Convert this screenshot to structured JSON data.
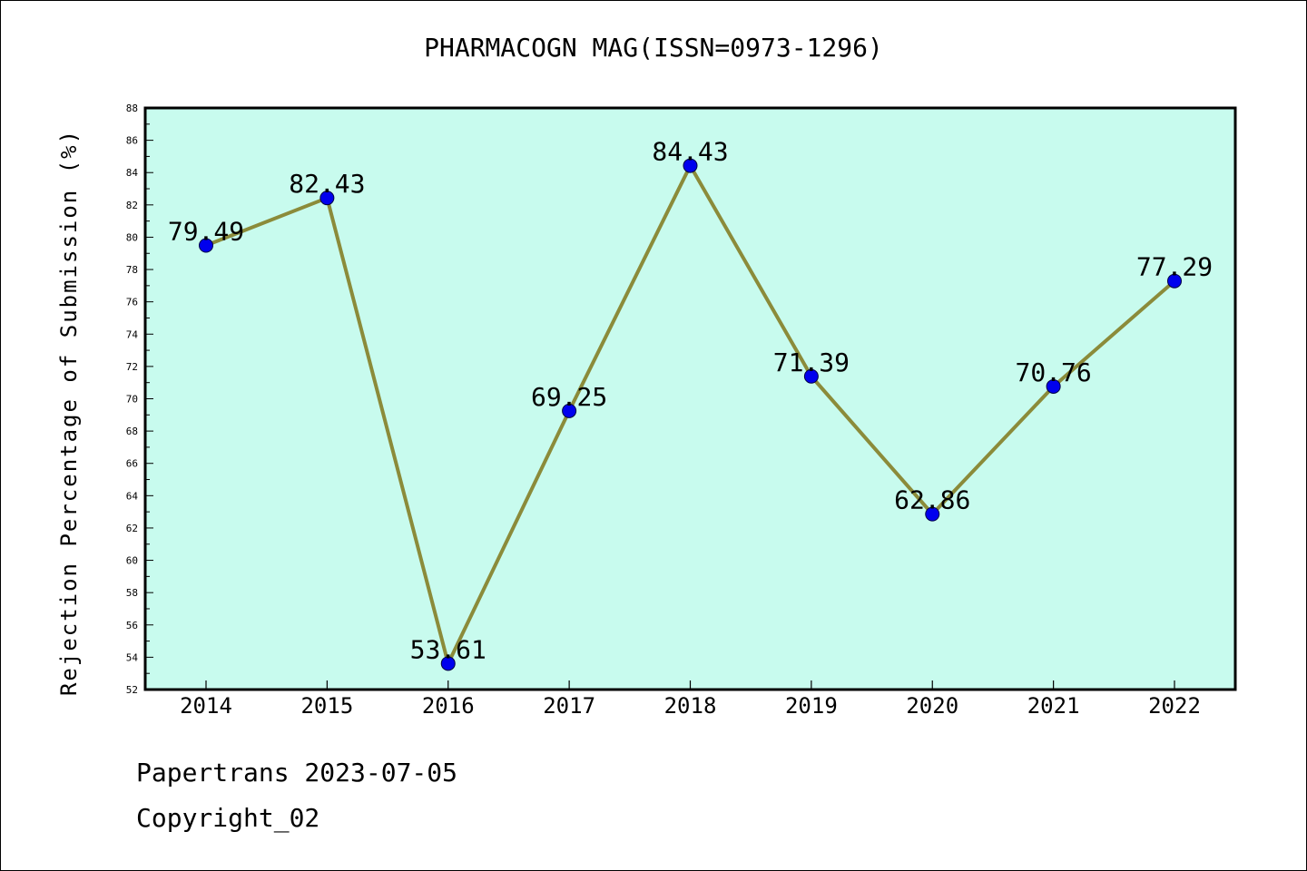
{
  "title": "PHARMACOGN MAG(ISSN=0973-1296)",
  "footer": {
    "line1": "Papertrans 2023-07-05",
    "line2": "Copyright_02"
  },
  "colors": {
    "plot_background": "#c8fbee",
    "line": "#8b8b3a",
    "marker": "#0000ee",
    "frame": "#000000"
  },
  "chart_data": {
    "type": "line",
    "title": "PHARMACOGN MAG(ISSN=0973-1296)",
    "xlabel": "",
    "ylabel": "Rejection Percentage of Submission (%)",
    "categories": [
      "2014",
      "2015",
      "2016",
      "2017",
      "2018",
      "2019",
      "2020",
      "2021",
      "2022"
    ],
    "values": [
      79.49,
      82.43,
      53.61,
      69.25,
      84.43,
      71.39,
      62.86,
      70.76,
      77.29
    ],
    "data_labels": [
      "79.49",
      "82.43",
      "53.61",
      "69.25",
      "84.43",
      "71.39",
      "62.86",
      "70.76",
      "77.29"
    ],
    "ylim": [
      52,
      88
    ],
    "y_ticks": [
      "52",
      "54",
      "56",
      "58",
      "60",
      "62",
      "64",
      "66",
      "68",
      "70",
      "72",
      "74",
      "76",
      "78",
      "80",
      "82",
      "84",
      "86",
      "88"
    ],
    "grid": false,
    "legend": "none"
  }
}
